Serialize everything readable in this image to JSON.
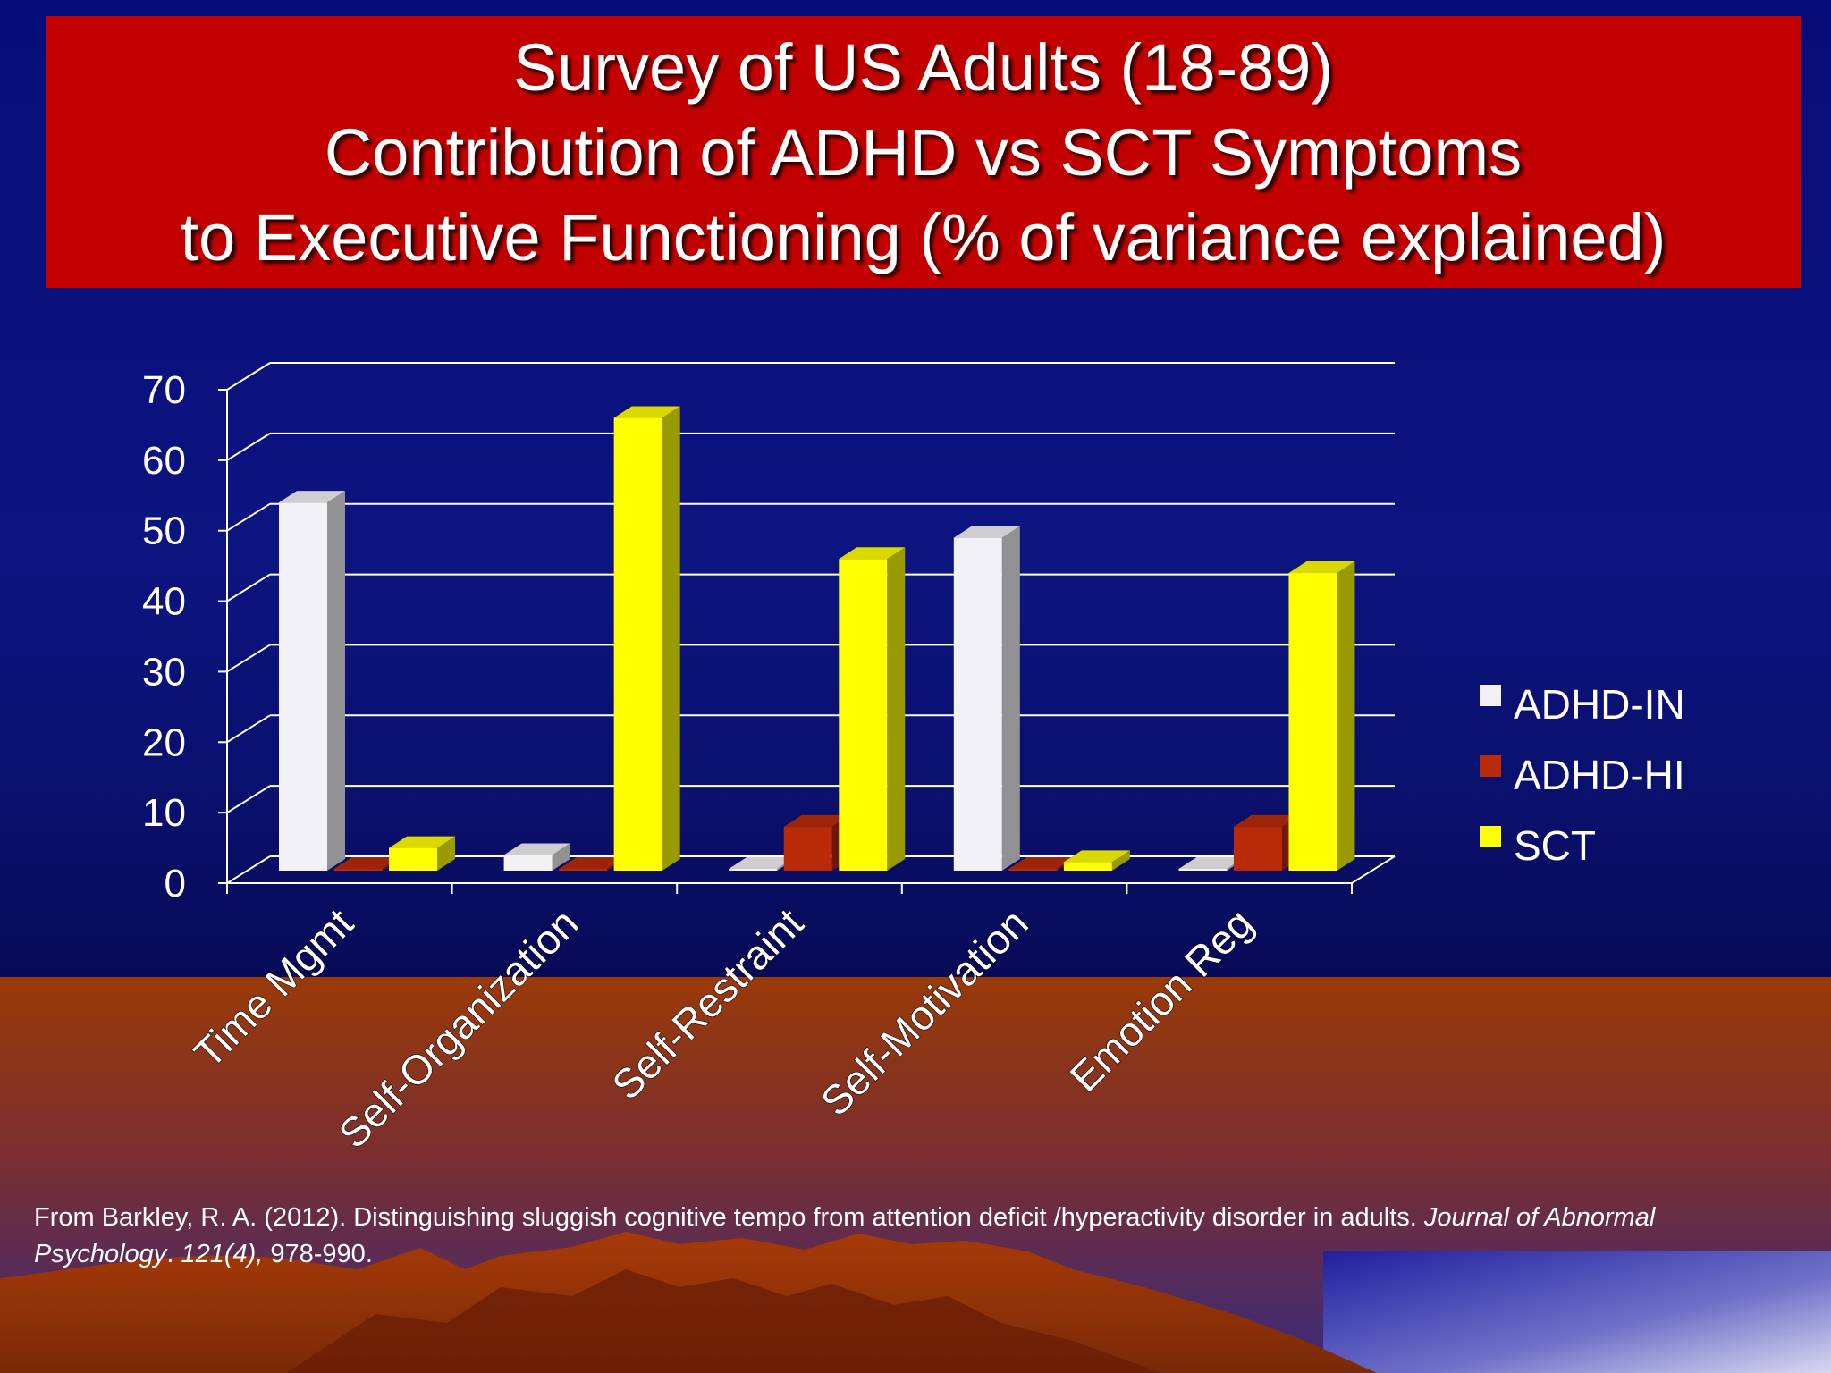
{
  "title": {
    "line1": "Survey of US Adults (18-89)",
    "line2": "Contribution of ADHD vs SCT Symptoms",
    "line3": "to Executive Functioning (% of variance explained)"
  },
  "citation": {
    "part1": "From Barkley, R. A. (2012).  Distinguishing sluggish cognitive tempo from attention deficit /hyperactivity disorder in adults.  ",
    "journal": "Journal of Abnormal Psychology",
    "part2": ". ",
    "volume": "121(4),",
    "pages": " 978-990."
  },
  "colors": {
    "title_bg": "#c20000",
    "background": "#0a0f6a",
    "ADHD-IN": "#f2f2f6",
    "ADHD-HI": "#b82a08",
    "SCT": "#ffff00"
  },
  "chart_data": {
    "type": "bar",
    "style": "3d-clustered-column",
    "categories": [
      "Time Mgmt",
      "Self-Organization",
      "Self-Restraint",
      "Self-Motivation",
      "Emotion Reg"
    ],
    "series": [
      {
        "name": "ADHD-IN",
        "values": [
          54,
          4,
          2,
          49,
          1
        ]
      },
      {
        "name": "ADHD-HI",
        "values": [
          0.5,
          0.5,
          8,
          1.5,
          8
        ]
      },
      {
        "name": "SCT",
        "values": [
          5,
          66,
          46,
          3,
          44
        ]
      }
    ],
    "yticks": [
      0,
      10,
      20,
      30,
      40,
      50,
      60,
      70
    ],
    "ylim": [
      0,
      70
    ],
    "grid": true,
    "legend": "right",
    "xlabel": "",
    "ylabel": ""
  }
}
